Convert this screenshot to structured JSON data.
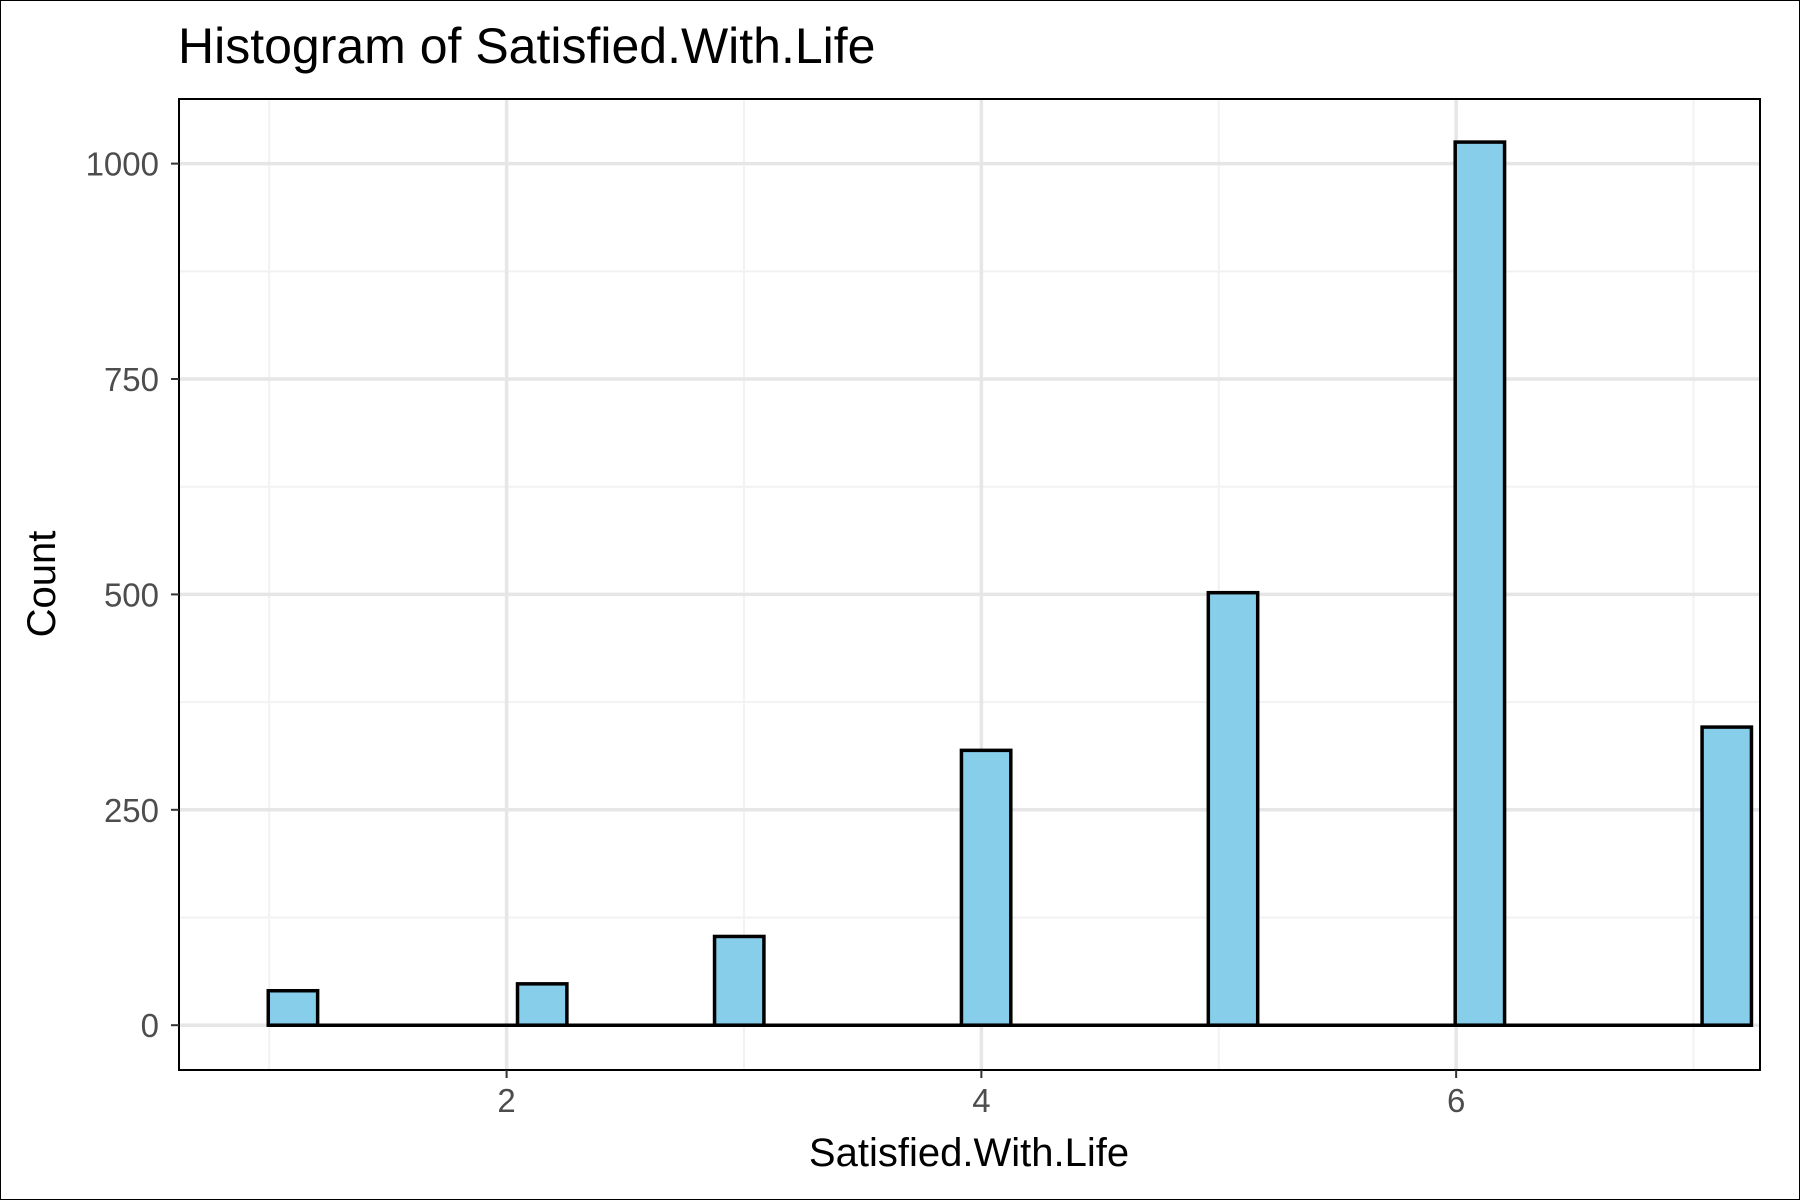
{
  "chart_data": {
    "type": "bar",
    "title": "Histogram of Satisfied.With.Life",
    "xlabel": "Satisfied.With.Life",
    "ylabel": "Count",
    "categories": [
      1,
      2,
      3,
      4,
      5,
      6,
      7
    ],
    "values": [
      40,
      48,
      103,
      319,
      502,
      1025,
      346
    ],
    "x_bin_centers": [
      1.1,
      2.15,
      2.98,
      4.02,
      5.06,
      6.1,
      7.14
    ],
    "xlim": [
      0.62,
      7.28
    ],
    "ylim": [
      -52,
      1075
    ],
    "x_ticks": [
      2,
      4,
      6
    ],
    "x_tick_labels": [
      "2",
      "4",
      "6"
    ],
    "y_ticks": [
      0,
      250,
      500,
      750,
      1000
    ],
    "y_tick_labels": [
      "0",
      "250",
      "500",
      "750",
      "1000"
    ],
    "grid": true,
    "colors": {
      "bar_fill": "#87CEEB",
      "bar_outline": "#000000",
      "grid_major": "#e6e6e6",
      "grid_minor": "#f2f2f2",
      "panel_border": "#000000"
    }
  }
}
